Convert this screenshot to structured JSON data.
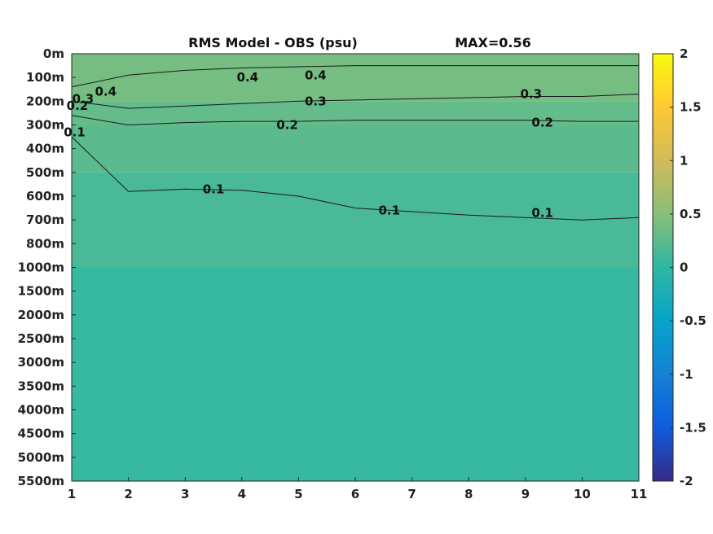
{
  "chart_data": {
    "type": "heatmap",
    "title": "RMS Model - OBS (psu)",
    "max_label": "MAX=0.56",
    "x": [
      1,
      2,
      3,
      4,
      5,
      6,
      7,
      8,
      9,
      10,
      11
    ],
    "xlim": [
      1,
      11
    ],
    "x_tick_labels": [
      "1",
      "2",
      "3",
      "4",
      "5",
      "6",
      "7",
      "8",
      "9",
      "10",
      "11"
    ],
    "depth_labels": [
      "0m",
      "100m",
      "200m",
      "300m",
      "400m",
      "500m",
      "600m",
      "700m",
      "800m",
      "1000m",
      "1500m",
      "2000m",
      "2500m",
      "3000m",
      "3500m",
      "4000m",
      "4500m",
      "5000m",
      "5500m"
    ],
    "depth_values": [
      0,
      100,
      200,
      300,
      400,
      500,
      600,
      700,
      800,
      1000,
      1500,
      2000,
      2500,
      3000,
      3500,
      4000,
      4500,
      5000,
      5500
    ],
    "grid": false,
    "colorbar": {
      "range": [
        -2,
        2
      ],
      "tick_values": [
        2,
        1.5,
        1,
        0.5,
        0,
        -0.5,
        -1,
        -1.5,
        -2
      ],
      "tick_labels": [
        "2",
        "1.5",
        "1",
        "0.5",
        "0",
        "-0.5",
        "-1",
        "-1.5",
        "-2"
      ],
      "colormap": "parula",
      "colors": [
        "#352a87",
        "#0f5cdd",
        "#1481d6",
        "#06a4ca",
        "#2eb7a4",
        "#87bf77",
        "#d1bb59",
        "#fec832",
        "#f9fb0e"
      ]
    },
    "series": [
      {
        "level": 0.4,
        "depth": [
          140,
          90,
          70,
          60,
          55,
          50,
          50,
          50,
          50,
          50,
          50
        ]
      },
      {
        "level": 0.3,
        "depth": [
          200,
          230,
          220,
          210,
          200,
          195,
          190,
          185,
          180,
          180,
          170
        ]
      },
      {
        "level": 0.2,
        "depth": [
          260,
          300,
          290,
          285,
          285,
          280,
          280,
          280,
          280,
          285,
          285
        ]
      },
      {
        "level": 0.1,
        "depth": [
          350,
          580,
          570,
          575,
          600,
          650,
          665,
          680,
          690,
          700,
          690
        ]
      }
    ],
    "contour_labels": [
      {
        "text": "0.4",
        "x": 1.6,
        "depth": 160
      },
      {
        "text": "0.4",
        "x": 4.1,
        "depth": 100
      },
      {
        "text": "0.4",
        "x": 5.3,
        "depth": 90
      },
      {
        "text": "0.3",
        "x": 1.2,
        "depth": 190
      },
      {
        "text": "0.3",
        "x": 5.3,
        "depth": 200
      },
      {
        "text": "0.3",
        "x": 9.1,
        "depth": 170
      },
      {
        "text": "0.2",
        "x": 1.1,
        "depth": 220
      },
      {
        "text": "0.2",
        "x": 4.8,
        "depth": 300
      },
      {
        "text": "0.2",
        "x": 9.3,
        "depth": 290
      },
      {
        "text": "0.1",
        "x": 1.05,
        "depth": 330
      },
      {
        "text": "0.1",
        "x": 3.5,
        "depth": 570
      },
      {
        "text": "0.1",
        "x": 6.6,
        "depth": 660
      },
      {
        "text": "0.1",
        "x": 9.3,
        "depth": 670
      }
    ],
    "field_bands": [
      {
        "depth_from": 0,
        "depth_to": 200,
        "value": 0.4
      },
      {
        "depth_from": 200,
        "depth_to": 300,
        "value": 0.3
      },
      {
        "depth_from": 300,
        "depth_to": 500,
        "value": 0.25
      },
      {
        "depth_from": 500,
        "depth_to": 1000,
        "value": 0.15
      },
      {
        "depth_from": 1000,
        "depth_to": 5500,
        "value": 0.05
      }
    ]
  }
}
